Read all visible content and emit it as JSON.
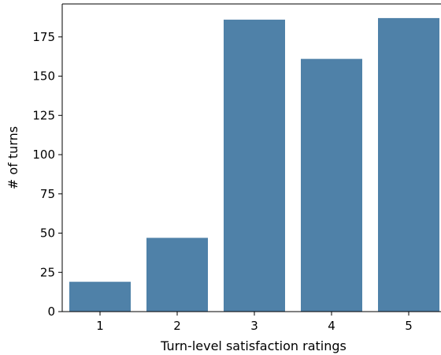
{
  "chart_data": {
    "type": "bar",
    "title": "",
    "xlabel": "Turn-level satisfaction ratings",
    "ylabel": "# of turns",
    "categories": [
      "1",
      "2",
      "3",
      "4",
      "5"
    ],
    "values": [
      19,
      47,
      186,
      161,
      187
    ],
    "ylim": [
      0,
      196
    ],
    "yticks": [
      0,
      25,
      50,
      75,
      100,
      125,
      150,
      175
    ],
    "bar_color": "#4f81a8",
    "grid": false,
    "legend": "none"
  }
}
